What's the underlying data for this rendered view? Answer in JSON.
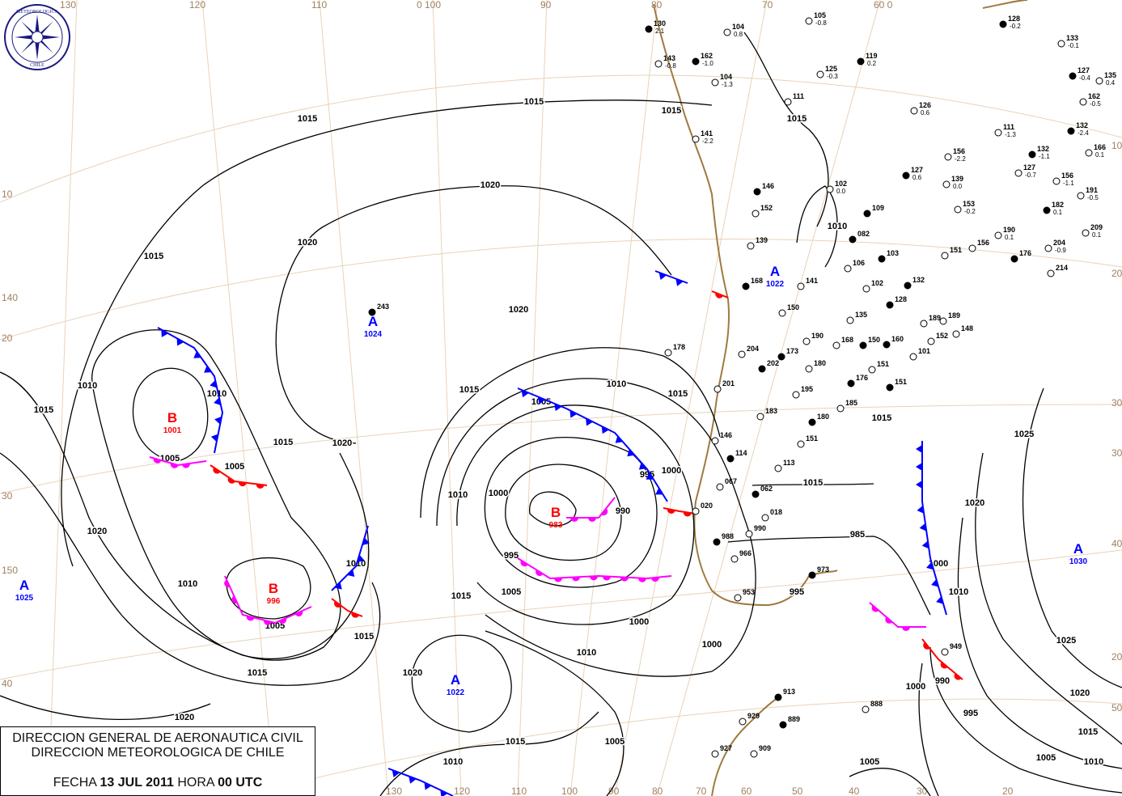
{
  "title": {
    "line1": "DIRECCION GENERAL DE AERONAUTICA CIVIL",
    "line2": "DIRECCION METEOROLOGICA DE CHILE",
    "fecha_label": "FECHA",
    "fecha": "13 JUL 2011",
    "hora_label": "HORA",
    "hora": "00 UTC"
  },
  "logo": {
    "text": "DIRECCION METEOROLOGICA CHILE",
    "color": "#1a1a80"
  },
  "colors": {
    "high": "#0000ff",
    "low": "#ff0000",
    "cold_front": "#0000ff",
    "warm_front": "#ff0000",
    "occluded_front": "#ff00ff",
    "coast": "#a07a40",
    "grid": "#e8d2b8"
  },
  "grid_labels": {
    "top": [
      "130",
      "120",
      "110",
      "0 100",
      "90",
      "80",
      "70",
      "60 0"
    ],
    "bottom": [
      "130",
      "120",
      "110",
      "100",
      "90",
      "80",
      "70",
      "60",
      "50",
      "40",
      "30",
      "20"
    ],
    "left": [
      "10",
      "140",
      "20",
      "30",
      "150",
      "40"
    ],
    "right": [
      "10",
      "20",
      "30",
      "30",
      "40",
      "20",
      "50"
    ]
  },
  "pressure_centers": [
    {
      "type": "A",
      "value": "1024"
    },
    {
      "type": "B",
      "value": "1001"
    },
    {
      "type": "B",
      "value": "996"
    },
    {
      "type": "A",
      "value": "1025"
    },
    {
      "type": "B",
      "value": "983"
    },
    {
      "type": "A",
      "value": "1022"
    },
    {
      "type": "A",
      "value": "1022"
    },
    {
      "type": "A",
      "value": "1030"
    }
  ],
  "isobar_labels": [
    "1015",
    "1015",
    "1015",
    "1020",
    "1020",
    "1020",
    "1020",
    "1015",
    "1010",
    "1010",
    "1005",
    "1015",
    "1015",
    "1020",
    "1010",
    "1005",
    "1010",
    "1015",
    "1015",
    "1020",
    "1015",
    "1005",
    "1005",
    "1010",
    "1015",
    "1010",
    "1000",
    "995",
    "995",
    "1000",
    "990",
    "1000",
    "1005",
    "1010",
    "1005",
    "1000",
    "995",
    "1015",
    "1010",
    "1005",
    "985",
    "1000",
    "990",
    "995",
    "1010",
    "1000",
    "1015",
    "1015",
    "1015",
    "1020",
    "1025",
    "1025",
    "1020",
    "1015",
    "1010",
    "1005",
    "1020",
    "1010",
    "1015"
  ],
  "stations": [
    {
      "id": "130",
      "val": "2.1"
    },
    {
      "id": "104",
      "val": "0.8"
    },
    {
      "id": "105",
      "val": "-0.8"
    },
    {
      "id": "128",
      "val": "-0.2"
    },
    {
      "id": "133",
      "val": "-0.1"
    },
    {
      "id": "143",
      "val": "-0.8"
    },
    {
      "id": "162",
      "val": "-1.0"
    },
    {
      "id": "104",
      "val": "-1.3"
    },
    {
      "id": "125",
      "val": "-0.3"
    },
    {
      "id": "119",
      "val": "0.2"
    },
    {
      "id": "111",
      "val": ""
    },
    {
      "id": "126",
      "val": "0.6"
    },
    {
      "id": "127",
      "val": "-0.4"
    },
    {
      "id": "135",
      "val": "0.4"
    },
    {
      "id": "162",
      "val": "-0.5"
    },
    {
      "id": "132",
      "val": "-2.4"
    },
    {
      "id": "141",
      "val": "-2.2"
    },
    {
      "id": "111",
      "val": "-1.3"
    },
    {
      "id": "132",
      "val": "-1.1"
    },
    {
      "id": "166",
      "val": "0.1"
    },
    {
      "id": "156",
      "val": "-2.2"
    },
    {
      "id": "127",
      "val": "0.6"
    },
    {
      "id": "127",
      "val": "-0.7"
    },
    {
      "id": "156",
      "val": "-1.1"
    },
    {
      "id": "146",
      "val": ""
    },
    {
      "id": "102",
      "val": "0.0"
    },
    {
      "id": "139",
      "val": "0.0"
    },
    {
      "id": "109",
      "val": ""
    },
    {
      "id": "152",
      "val": ""
    },
    {
      "id": "153",
      "val": "-0.2"
    },
    {
      "id": "182",
      "val": "0.1"
    },
    {
      "id": "191",
      "val": "-0.5"
    },
    {
      "id": "139",
      "val": ""
    },
    {
      "id": "082",
      "val": ""
    },
    {
      "id": "190",
      "val": "0.1"
    },
    {
      "id": "209",
      "val": "0.1"
    },
    {
      "id": "103",
      "val": ""
    },
    {
      "id": "151",
      "val": ""
    },
    {
      "id": "156",
      "val": ""
    },
    {
      "id": "176",
      "val": ""
    },
    {
      "id": "204",
      "val": "-0.9"
    },
    {
      "id": "214",
      "val": ""
    },
    {
      "id": "168",
      "val": ""
    },
    {
      "id": "141",
      "val": ""
    },
    {
      "id": "106",
      "val": ""
    },
    {
      "id": "132",
      "val": ""
    },
    {
      "id": "189",
      "val": ""
    },
    {
      "id": "102",
      "val": ""
    },
    {
      "id": "243",
      "val": ""
    },
    {
      "id": "150",
      "val": ""
    },
    {
      "id": "135",
      "val": ""
    },
    {
      "id": "128",
      "val": ""
    },
    {
      "id": "178",
      "val": ""
    },
    {
      "id": "204",
      "val": ""
    },
    {
      "id": "173",
      "val": ""
    },
    {
      "id": "190",
      "val": ""
    },
    {
      "id": "168",
      "val": ""
    },
    {
      "id": "150",
      "val": ""
    },
    {
      "id": "189",
      "val": ""
    },
    {
      "id": "148",
      "val": ""
    },
    {
      "id": "160",
      "val": ""
    },
    {
      "id": "152",
      "val": ""
    },
    {
      "id": "101",
      "val": ""
    },
    {
      "id": "202",
      "val": ""
    },
    {
      "id": "180",
      "val": ""
    },
    {
      "id": "151",
      "val": ""
    },
    {
      "id": "176",
      "val": ""
    },
    {
      "id": "201",
      "val": ""
    },
    {
      "id": "195",
      "val": ""
    },
    {
      "id": "151",
      "val": ""
    },
    {
      "id": "185",
      "val": ""
    },
    {
      "id": "183",
      "val": ""
    },
    {
      "id": "180",
      "val": ""
    },
    {
      "id": "146",
      "val": ""
    },
    {
      "id": "151",
      "val": ""
    },
    {
      "id": "114",
      "val": ""
    },
    {
      "id": "113",
      "val": ""
    },
    {
      "id": "067",
      "val": ""
    },
    {
      "id": "062",
      "val": ""
    },
    {
      "id": "020",
      "val": ""
    },
    {
      "id": "018",
      "val": ""
    },
    {
      "id": "988",
      "val": ""
    },
    {
      "id": "990",
      "val": ""
    },
    {
      "id": "966",
      "val": ""
    },
    {
      "id": "973",
      "val": ""
    },
    {
      "id": "953",
      "val": ""
    },
    {
      "id": "949",
      "val": ""
    },
    {
      "id": "913",
      "val": ""
    },
    {
      "id": "888",
      "val": ""
    },
    {
      "id": "929",
      "val": ""
    },
    {
      "id": "889",
      "val": ""
    },
    {
      "id": "927",
      "val": ""
    },
    {
      "id": "909",
      "val": ""
    }
  ]
}
